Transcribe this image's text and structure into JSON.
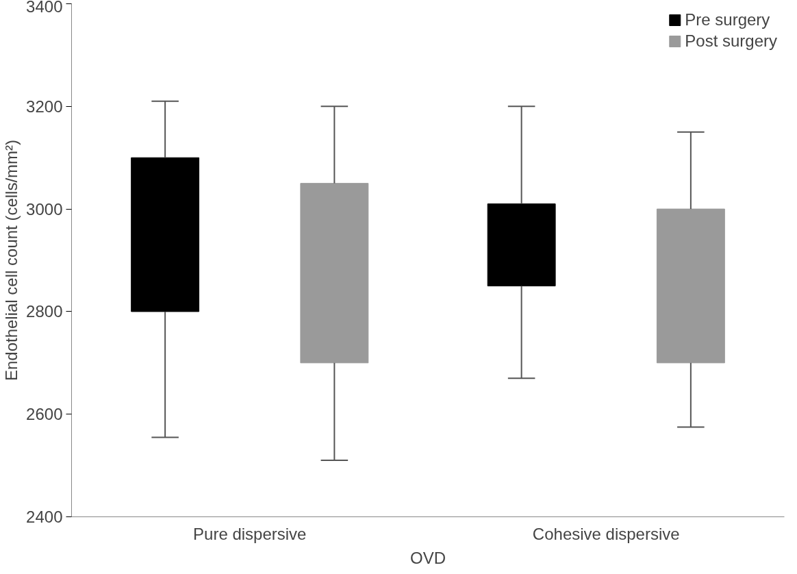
{
  "chart_data": {
    "type": "bar",
    "xlabel": "OVD",
    "ylabel": "Endothelial cell count (cells/mm²)",
    "categories": [
      "Pure dispersive",
      "Cohesive dispersive"
    ],
    "series": [
      {
        "name": "Pre surgery",
        "color": "#000000",
        "base": [
          2800,
          2850
        ],
        "values": [
          300,
          160
        ],
        "errors": [
          [
            2555,
            3210
          ],
          [
            2670,
            3200
          ]
        ]
      },
      {
        "name": "Post surgery",
        "color": "#9a9a9a",
        "base": [
          2700,
          2700
        ],
        "values": [
          350,
          300
        ],
        "errors": [
          [
            2510,
            3200
          ],
          [
            2575,
            3150
          ]
        ]
      }
    ],
    "ylim": [
      2400,
      3400
    ],
    "yticks": [
      2400,
      2600,
      2800,
      3000,
      3200,
      3400
    ],
    "legend": "top right",
    "grid": false
  }
}
